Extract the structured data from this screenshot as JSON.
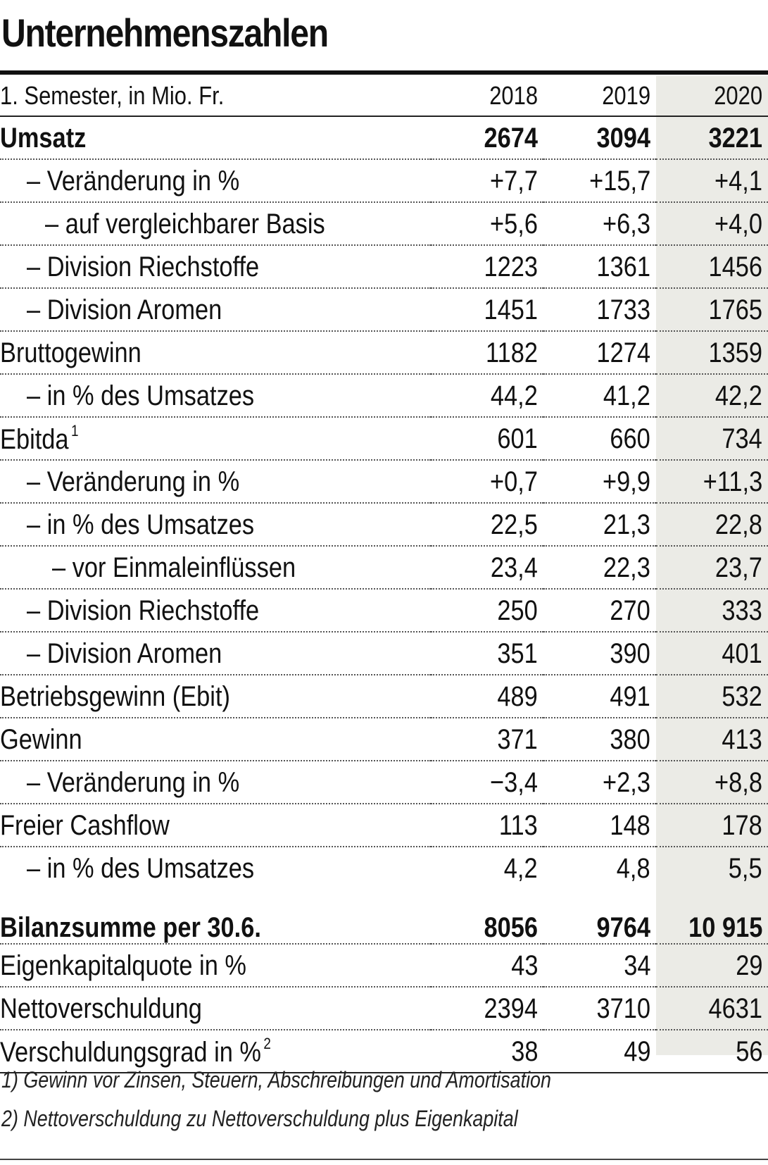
{
  "title": "Unternehmenszahlen",
  "header": {
    "label": "1. Semester, in Mio. Fr.",
    "years": [
      "2018",
      "2019",
      "2020"
    ]
  },
  "rows": [
    {
      "label": "Umsatz",
      "values": [
        "2674",
        "3094",
        "3221"
      ]
    },
    {
      "label": "– Veränderung in %",
      "values": [
        "+7,7",
        "+15,7",
        "+4,1"
      ]
    },
    {
      "label": "– auf vergleichbarer Basis",
      "values": [
        "+5,6",
        "+6,3",
        "+4,0"
      ]
    },
    {
      "label": "– Division Riechstoffe",
      "values": [
        "1223",
        "1361",
        "1456"
      ]
    },
    {
      "label": "– Division Aromen",
      "values": [
        "1451",
        "1733",
        "1765"
      ]
    },
    {
      "label": "Bruttogewinn",
      "values": [
        "1182",
        "1274",
        "1359"
      ]
    },
    {
      "label": "– in % des Umsatzes",
      "values": [
        "44,2",
        "41,2",
        "42,2"
      ]
    },
    {
      "label": "Ebitda",
      "note": "1",
      "values": [
        "601",
        "660",
        "734"
      ]
    },
    {
      "label": "– Veränderung in %",
      "values": [
        "+0,7",
        "+9,9",
        "+11,3"
      ]
    },
    {
      "label": "– in % des Umsatzes",
      "values": [
        "22,5",
        "21,3",
        "22,8"
      ]
    },
    {
      "label": "– vor Einmaleinflüssen",
      "values": [
        "23,4",
        "22,3",
        "23,7"
      ]
    },
    {
      "label": "– Division Riechstoffe",
      "values": [
        "250",
        "270",
        "333"
      ]
    },
    {
      "label": "– Division Aromen",
      "values": [
        "351",
        "390",
        "401"
      ]
    },
    {
      "label": "Betriebsgewinn (Ebit)",
      "values": [
        "489",
        "491",
        "532"
      ]
    },
    {
      "label": "Gewinn",
      "values": [
        "371",
        "380",
        "413"
      ]
    },
    {
      "label": "– Veränderung in %",
      "values": [
        "−3,4",
        "+2,3",
        "+8,8"
      ]
    },
    {
      "label": "Freier Cashflow",
      "values": [
        "113",
        "148",
        "178"
      ]
    },
    {
      "label": "– in % des Umsatzes",
      "values": [
        "4,2",
        "4,8",
        "5,5"
      ]
    },
    {
      "label": "Bilanzsumme per 30.6.",
      "values": [
        "8056",
        "9764",
        "10 915"
      ]
    },
    {
      "label": "Eigenkapitalquote in %",
      "values": [
        "43",
        "34",
        "29"
      ]
    },
    {
      "label": "Nettoverschuldung",
      "values": [
        "2394",
        "3710",
        "4631"
      ]
    },
    {
      "label": "Verschuldungsgrad in %",
      "note": "2",
      "values": [
        "38",
        "49",
        "56"
      ]
    }
  ],
  "footnotes": [
    "1) Gewinn vor Zinsen, Steuern, Abschreibungen und Amortisation",
    "2) Nettoverschuldung zu Nettoverschuldung plus Eigenkapital"
  ]
}
